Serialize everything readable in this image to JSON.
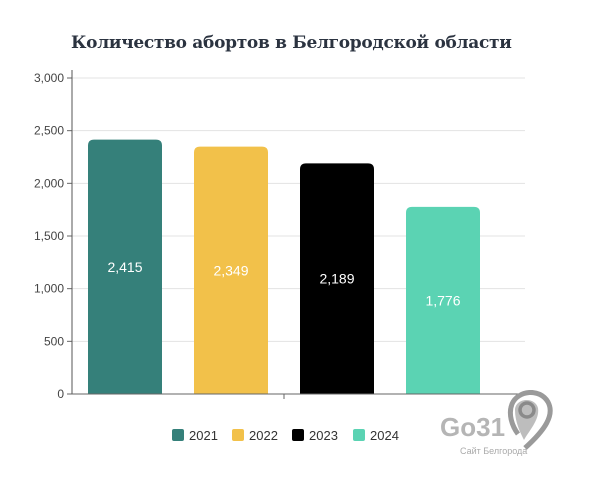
{
  "chart_data": {
    "type": "bar",
    "title": "Количество абортов в Белгородской области",
    "categories": [
      "2021",
      "2022",
      "2023",
      "2024"
    ],
    "values": [
      2415,
      2349,
      2189,
      1776
    ],
    "value_labels": [
      "2,415",
      "2,349",
      "2,189",
      "1,776"
    ],
    "colors": [
      "#35807a",
      "#f2c14a",
      "#000000",
      "#5bd3b3"
    ],
    "xlabel": "",
    "ylabel": "",
    "ylim": [
      0,
      3000
    ],
    "yticks": [
      0,
      500,
      1000,
      1500,
      2000,
      2500,
      3000
    ],
    "ytick_labels": [
      "0",
      "500",
      "1,000",
      "1,500",
      "2,000",
      "2,500",
      "3,000"
    ],
    "grid": true,
    "legend": [
      "2021",
      "2022",
      "2023",
      "2024"
    ],
    "legend_position": "bottom"
  },
  "watermark": {
    "brand": "Go31",
    "subtitle": "Сайт Белгорода"
  }
}
